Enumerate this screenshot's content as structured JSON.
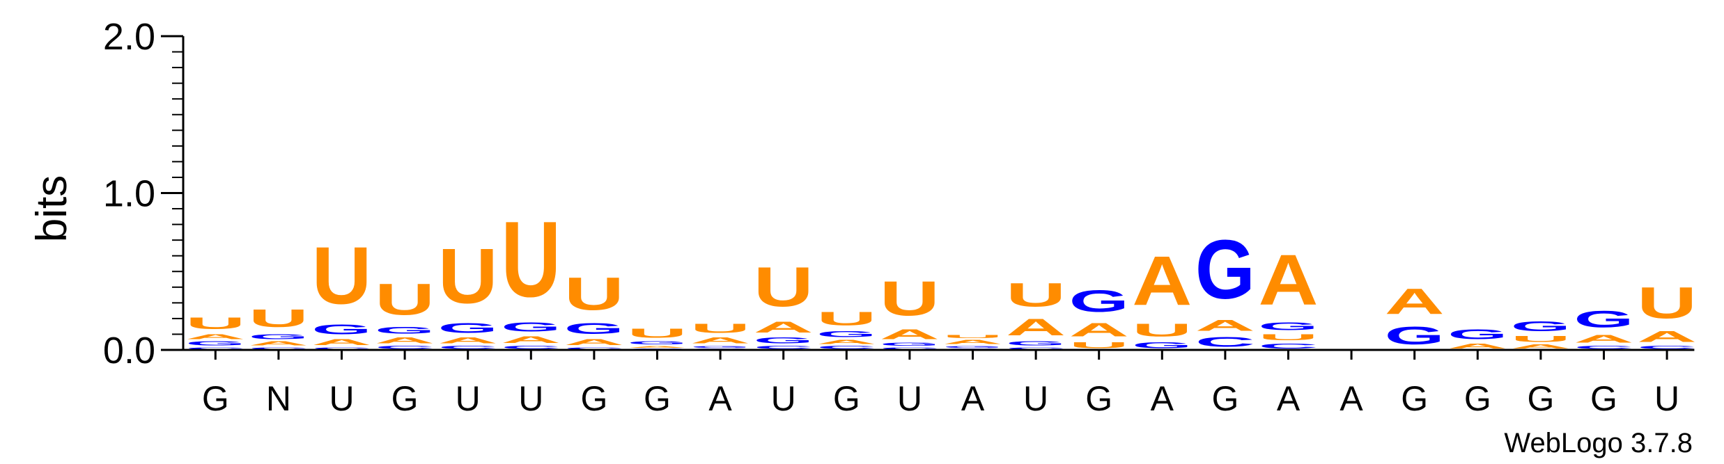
{
  "chart_data": {
    "type": "sequence-logo",
    "ylabel": "bits",
    "ylim": [
      0,
      2.0
    ],
    "y_ticks": [
      "0.0",
      "1.0",
      "2.0"
    ],
    "credit": "WebLogo 3.7.8",
    "colors": {
      "A": "#ff8c00",
      "U": "#ff8c00",
      "G": "#0000ff",
      "C": "#0000ff"
    },
    "positions": [
      {
        "label": "G",
        "stack": [
          {
            "l": "C",
            "h": 0.02
          },
          {
            "l": "G",
            "h": 0.04
          },
          {
            "l": "A",
            "h": 0.05
          },
          {
            "l": "U",
            "h": 0.12
          }
        ]
      },
      {
        "label": "N",
        "stack": [
          {
            "l": "C",
            "h": 0.02
          },
          {
            "l": "A",
            "h": 0.04
          },
          {
            "l": "G",
            "h": 0.05
          },
          {
            "l": "U",
            "h": 0.18
          }
        ]
      },
      {
        "label": "U",
        "stack": [
          {
            "l": "C",
            "h": 0.02
          },
          {
            "l": "A",
            "h": 0.06
          },
          {
            "l": "G",
            "h": 0.1
          },
          {
            "l": "U",
            "h": 0.58
          }
        ]
      },
      {
        "label": "G",
        "stack": [
          {
            "l": "C",
            "h": 0.03
          },
          {
            "l": "A",
            "h": 0.06
          },
          {
            "l": "G",
            "h": 0.07
          },
          {
            "l": "U",
            "h": 0.32
          }
        ]
      },
      {
        "label": "U",
        "stack": [
          {
            "l": "C",
            "h": 0.03
          },
          {
            "l": "A",
            "h": 0.06
          },
          {
            "l": "G",
            "h": 0.1
          },
          {
            "l": "U",
            "h": 0.56
          }
        ]
      },
      {
        "label": "U",
        "stack": [
          {
            "l": "C",
            "h": 0.03
          },
          {
            "l": "A",
            "h": 0.07
          },
          {
            "l": "G",
            "h": 0.09
          },
          {
            "l": "U",
            "h": 0.77
          }
        ]
      },
      {
        "label": "G",
        "stack": [
          {
            "l": "C",
            "h": 0.02
          },
          {
            "l": "A",
            "h": 0.06
          },
          {
            "l": "G",
            "h": 0.11
          },
          {
            "l": "U",
            "h": 0.33
          }
        ]
      },
      {
        "label": "G",
        "stack": [
          {
            "l": "C",
            "h": 0.01
          },
          {
            "l": "A",
            "h": 0.02
          },
          {
            "l": "G",
            "h": 0.03
          },
          {
            "l": "U",
            "h": 0.09
          }
        ]
      },
      {
        "label": "A",
        "stack": [
          {
            "l": "C",
            "h": 0.01
          },
          {
            "l": "G",
            "h": 0.02
          },
          {
            "l": "A",
            "h": 0.06
          },
          {
            "l": "U",
            "h": 0.09
          }
        ]
      },
      {
        "label": "U",
        "stack": [
          {
            "l": "C",
            "h": 0.03
          },
          {
            "l": "G",
            "h": 0.06
          },
          {
            "l": "A",
            "h": 0.11
          },
          {
            "l": "U",
            "h": 0.4
          }
        ]
      },
      {
        "label": "G",
        "stack": [
          {
            "l": "C",
            "h": 0.03
          },
          {
            "l": "A",
            "h": 0.04
          },
          {
            "l": "G",
            "h": 0.06
          },
          {
            "l": "U",
            "h": 0.14
          }
        ]
      },
      {
        "label": "U",
        "stack": [
          {
            "l": "C",
            "h": 0.02
          },
          {
            "l": "G",
            "h": 0.03
          },
          {
            "l": "A",
            "h": 0.1
          },
          {
            "l": "U",
            "h": 0.35
          }
        ]
      },
      {
        "label": "A",
        "stack": [
          {
            "l": "C",
            "h": 0.01
          },
          {
            "l": "G",
            "h": 0.02
          },
          {
            "l": "A",
            "h": 0.04
          },
          {
            "l": "U",
            "h": 0.03
          }
        ]
      },
      {
        "label": "U",
        "stack": [
          {
            "l": "C",
            "h": 0.02
          },
          {
            "l": "G",
            "h": 0.04
          },
          {
            "l": "A",
            "h": 0.17
          },
          {
            "l": "U",
            "h": 0.24
          }
        ]
      },
      {
        "label": "G",
        "stack": [
          {
            "l": "U",
            "h": 0.06
          },
          {
            "l": "A",
            "h": 0.14
          },
          {
            "l": "G",
            "h": 0.22
          }
        ]
      },
      {
        "label": "A",
        "stack": [
          {
            "l": "G",
            "h": 0.06
          },
          {
            "l": "U",
            "h": 0.13
          },
          {
            "l": "A",
            "h": 0.5
          }
        ]
      },
      {
        "label": "G",
        "stack": [
          {
            "l": "C",
            "h": 0.1
          },
          {
            "l": "A",
            "h": 0.11
          },
          {
            "l": "G",
            "h": 0.6
          }
        ]
      },
      {
        "label": "A",
        "stack": [
          {
            "l": "C",
            "h": 0.05
          },
          {
            "l": "U",
            "h": 0.06
          },
          {
            "l": "G",
            "h": 0.08
          },
          {
            "l": "A",
            "h": 0.51
          }
        ]
      },
      {
        "label": "A",
        "stack": []
      },
      {
        "label": "G",
        "stack": [
          {
            "l": "G",
            "h": 0.18
          },
          {
            "l": "A",
            "h": 0.26
          }
        ]
      },
      {
        "label": "G",
        "stack": [
          {
            "l": "A",
            "h": 0.05
          },
          {
            "l": "G",
            "h": 0.1
          }
        ]
      },
      {
        "label": "G",
        "stack": [
          {
            "l": "A",
            "h": 0.04
          },
          {
            "l": "U",
            "h": 0.06
          },
          {
            "l": "G",
            "h": 0.1
          }
        ]
      },
      {
        "label": "G",
        "stack": [
          {
            "l": "C",
            "h": 0.03
          },
          {
            "l": "A",
            "h": 0.08
          },
          {
            "l": "G",
            "h": 0.17
          }
        ]
      },
      {
        "label": "U",
        "stack": [
          {
            "l": "C",
            "h": 0.03
          },
          {
            "l": "A",
            "h": 0.11
          },
          {
            "l": "U",
            "h": 0.32
          }
        ]
      }
    ]
  }
}
